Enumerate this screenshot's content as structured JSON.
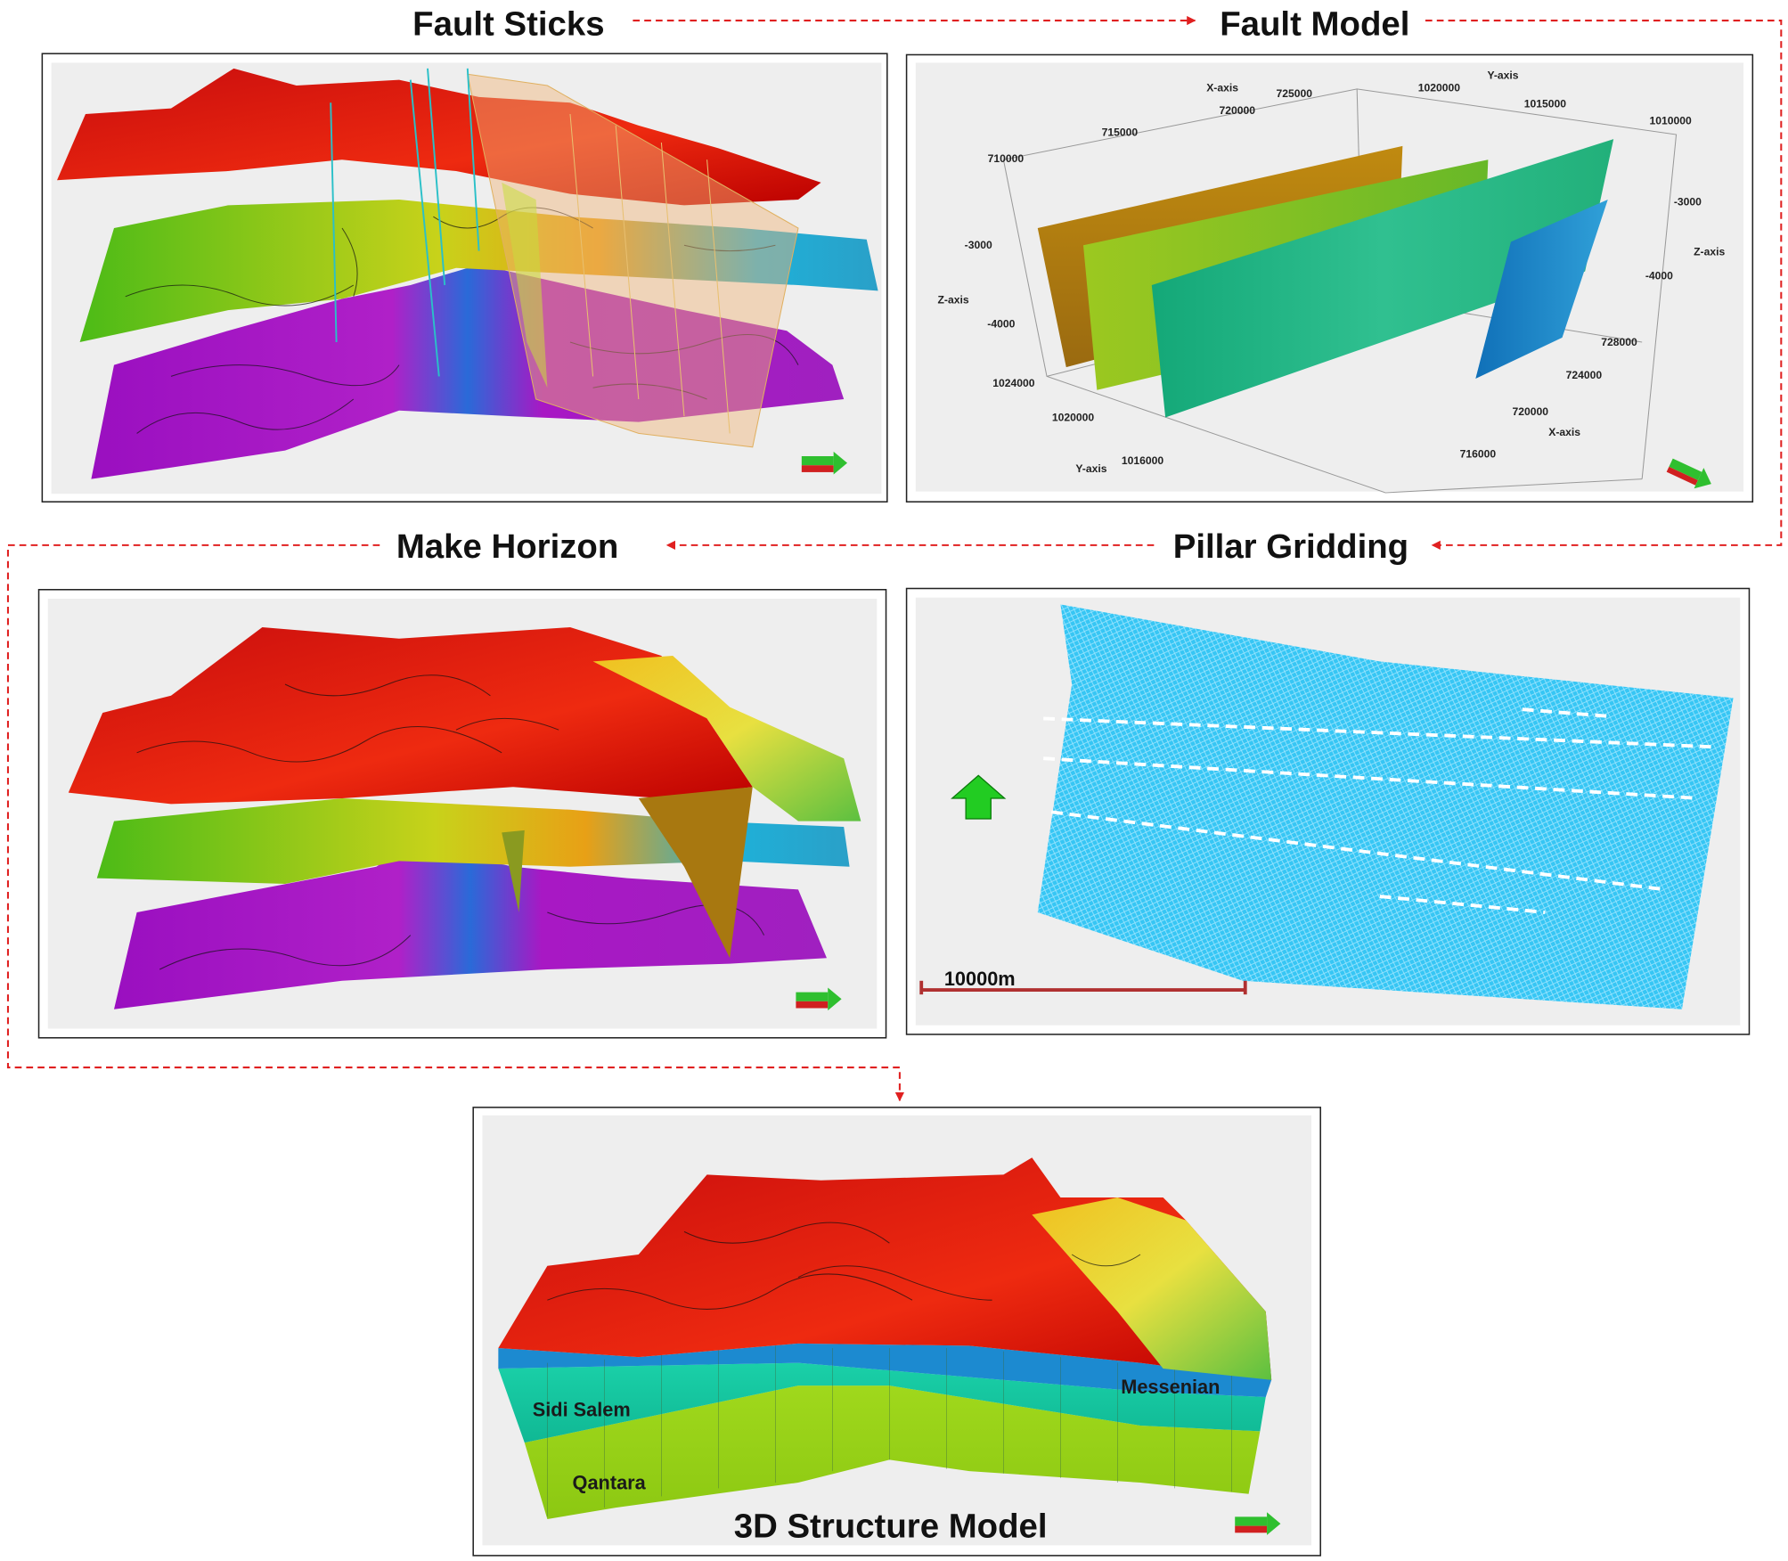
{
  "steps": {
    "fault_sticks": "Fault Sticks",
    "fault_model": "Fault Model",
    "make_horizon": "Make Horizon",
    "pillar_gridding": "Pillar Gridding",
    "structure_model": "3D Structure Model"
  },
  "fault_model_axes": {
    "labels": [
      "X-axis",
      "725000",
      "720000",
      "715000",
      "710000",
      "1020000",
      "Y-axis",
      "1015000",
      "1010000",
      "-3000",
      "Z-axis",
      "-4000",
      "1024000",
      "1020000",
      "1016000",
      "Y-axis",
      "-3000",
      "Z-axis",
      "-4000",
      "728000",
      "724000",
      "720000",
      "X-axis",
      "716000"
    ]
  },
  "pillar_gridding": {
    "scale_bar": "10000m"
  },
  "structure_model": {
    "formations": [
      "Sidi Salem",
      "Messenian",
      "Qantara"
    ]
  }
}
